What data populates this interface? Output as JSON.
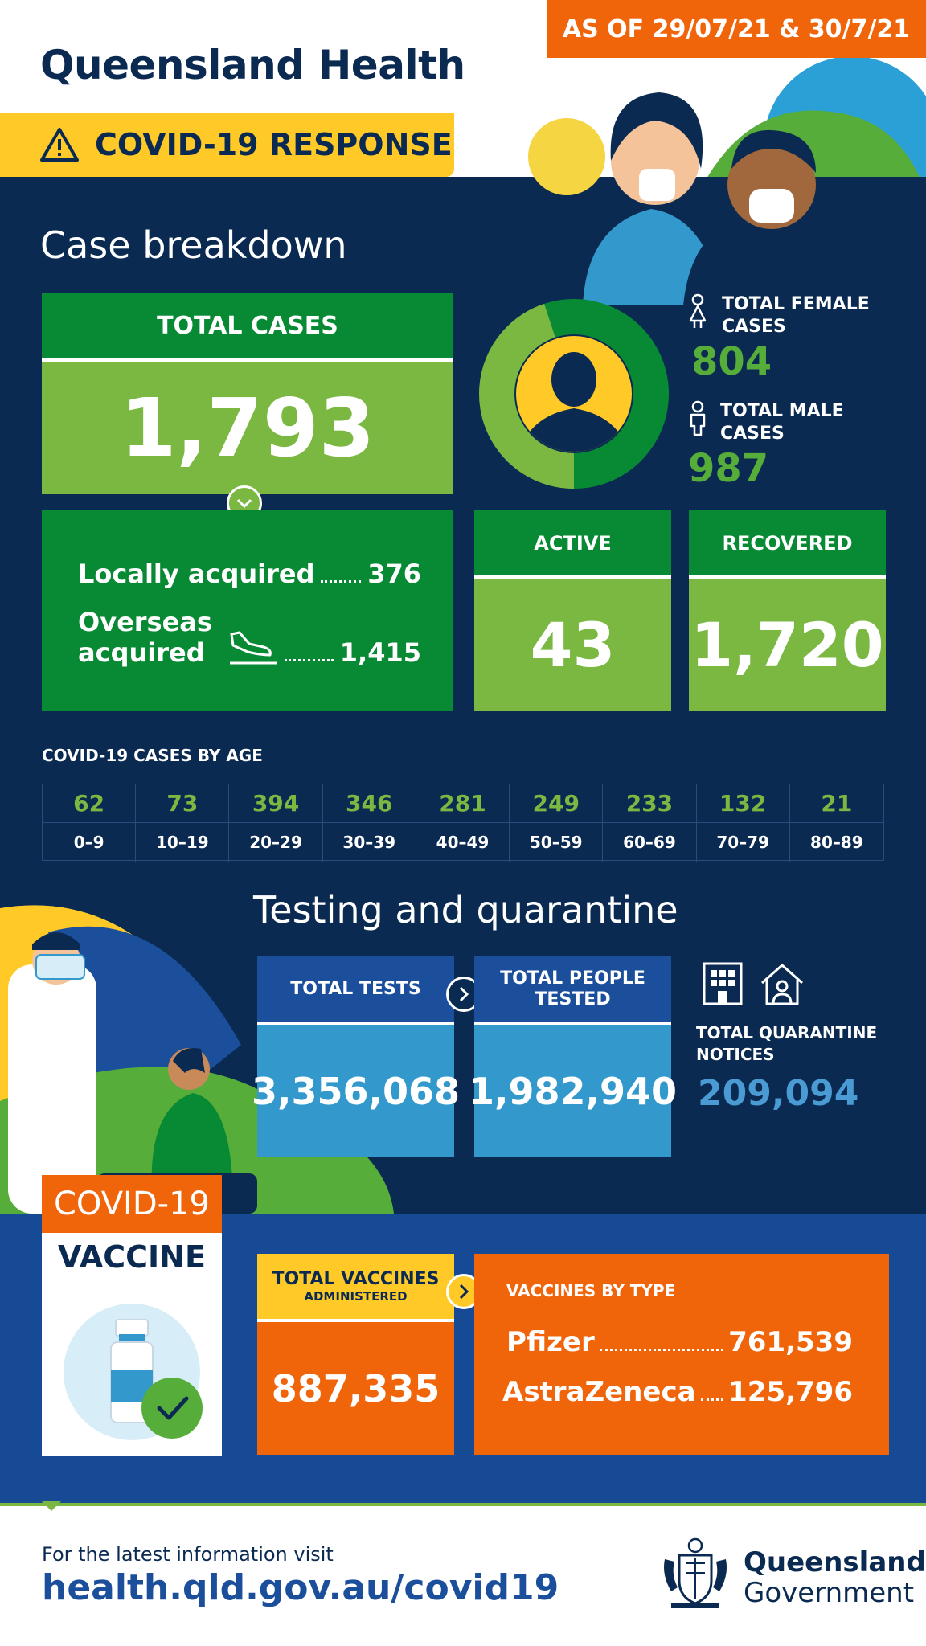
{
  "header": {
    "date_banner": "AS OF 29/07/21 & 30/7/21",
    "title": "Queensland Health",
    "tag": "COVID-19 RESPONSE"
  },
  "case_breakdown": {
    "heading": "Case breakdown",
    "total_label": "TOTAL CASES",
    "total_value": "1,793",
    "local_label": "Locally acquired",
    "local_value": "376",
    "overseas_label_1": "Overseas",
    "overseas_label_2": "acquired",
    "overseas_value": "1,415",
    "active_label": "ACTIVE",
    "active_value": "43",
    "recovered_label": "RECOVERED",
    "recovered_value": "1,720",
    "female_label_1": "TOTAL FEMALE",
    "female_label_2": "CASES",
    "female_value": "804",
    "male_label_1": "TOTAL MALE",
    "male_label_2": "CASES",
    "male_value": "987",
    "female_share": 0.449
  },
  "age": {
    "title": "COVID-19 CASES BY AGE",
    "groups": [
      {
        "value": "62",
        "label": "0–9"
      },
      {
        "value": "73",
        "label": "10–19"
      },
      {
        "value": "394",
        "label": "20–29"
      },
      {
        "value": "346",
        "label": "30–39"
      },
      {
        "value": "281",
        "label": "40–49"
      },
      {
        "value": "249",
        "label": "50–59"
      },
      {
        "value": "233",
        "label": "60–69"
      },
      {
        "value": "132",
        "label": "70–79"
      },
      {
        "value": "21",
        "label": "80–89"
      }
    ]
  },
  "testing": {
    "heading": "Testing and quarantine",
    "tests_label": "TOTAL TESTS",
    "tests_value": "3,356,068",
    "people_label_1": "TOTAL PEOPLE",
    "people_label_2": "TESTED",
    "people_value": "1,982,940",
    "quarantine_label_1": "TOTAL QUARANTINE",
    "quarantine_label_2": "NOTICES",
    "quarantine_value": "209,094"
  },
  "vaccine": {
    "card_head": "COVID-19",
    "card_sub": "VACCINE",
    "total_label": "TOTAL VACCINES",
    "total_sublabel": "ADMINISTERED",
    "total_value": "887,335",
    "type_title": "VACCINES BY TYPE",
    "pfizer_label": "Pfizer",
    "pfizer_value": "761,539",
    "astra_label": "AstraZeneca",
    "astra_value": "125,796"
  },
  "footer": {
    "visit_text": "For the latest information visit",
    "link": "health.qld.gov.au/covid19",
    "gov_line_1": "Queensland",
    "gov_line_2": "Government"
  },
  "colors": {
    "navy": "#0b2a52",
    "green_dark": "#088a34",
    "green_light": "#7ab842",
    "orange": "#f0640a",
    "yellow": "#ffca28",
    "blue": "#1b4f9c",
    "light_blue": "#3399cc"
  }
}
